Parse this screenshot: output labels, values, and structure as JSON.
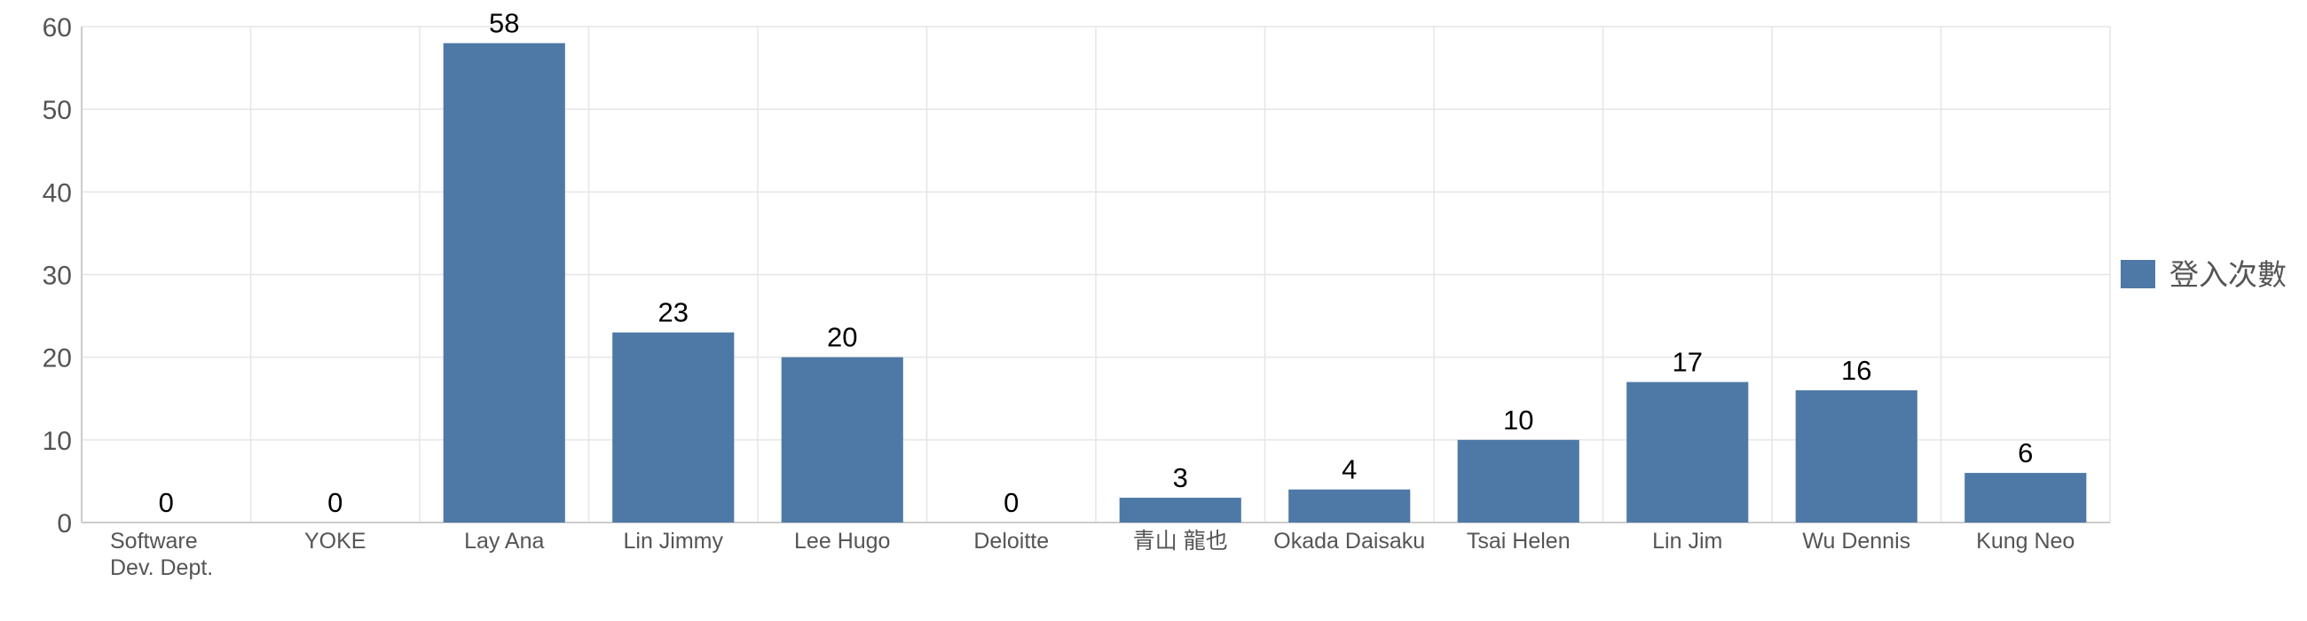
{
  "chart_data": {
    "type": "bar",
    "categories": [
      [
        "Software",
        "Dev.  Dept."
      ],
      [
        "YOKE"
      ],
      [
        "Lay Ana"
      ],
      [
        "Lin  Jimmy"
      ],
      [
        "Lee Hugo"
      ],
      [
        "Deloitte"
      ],
      [
        "青山 龍也"
      ],
      [
        "Okada Daisaku"
      ],
      [
        "Tsai Helen"
      ],
      [
        "Lin Jim"
      ],
      [
        "Wu Dennis"
      ],
      [
        "Kung Neo"
      ]
    ],
    "series": [
      {
        "name": "登入次數",
        "values": [
          0,
          0,
          58,
          23,
          20,
          0,
          3,
          4,
          10,
          17,
          16,
          6
        ]
      }
    ],
    "y_ticks": [
      "0",
      "10",
      "20",
      "30",
      "40",
      "50",
      "60"
    ],
    "ylim": [
      0,
      60
    ],
    "grid": true,
    "legend_position": "right",
    "colors": {
      "bar": "#4e79a7",
      "grid": "#e6e6e6",
      "axis": "#cccccc",
      "tick_text": "#555555",
      "data_label": "#000000"
    }
  }
}
